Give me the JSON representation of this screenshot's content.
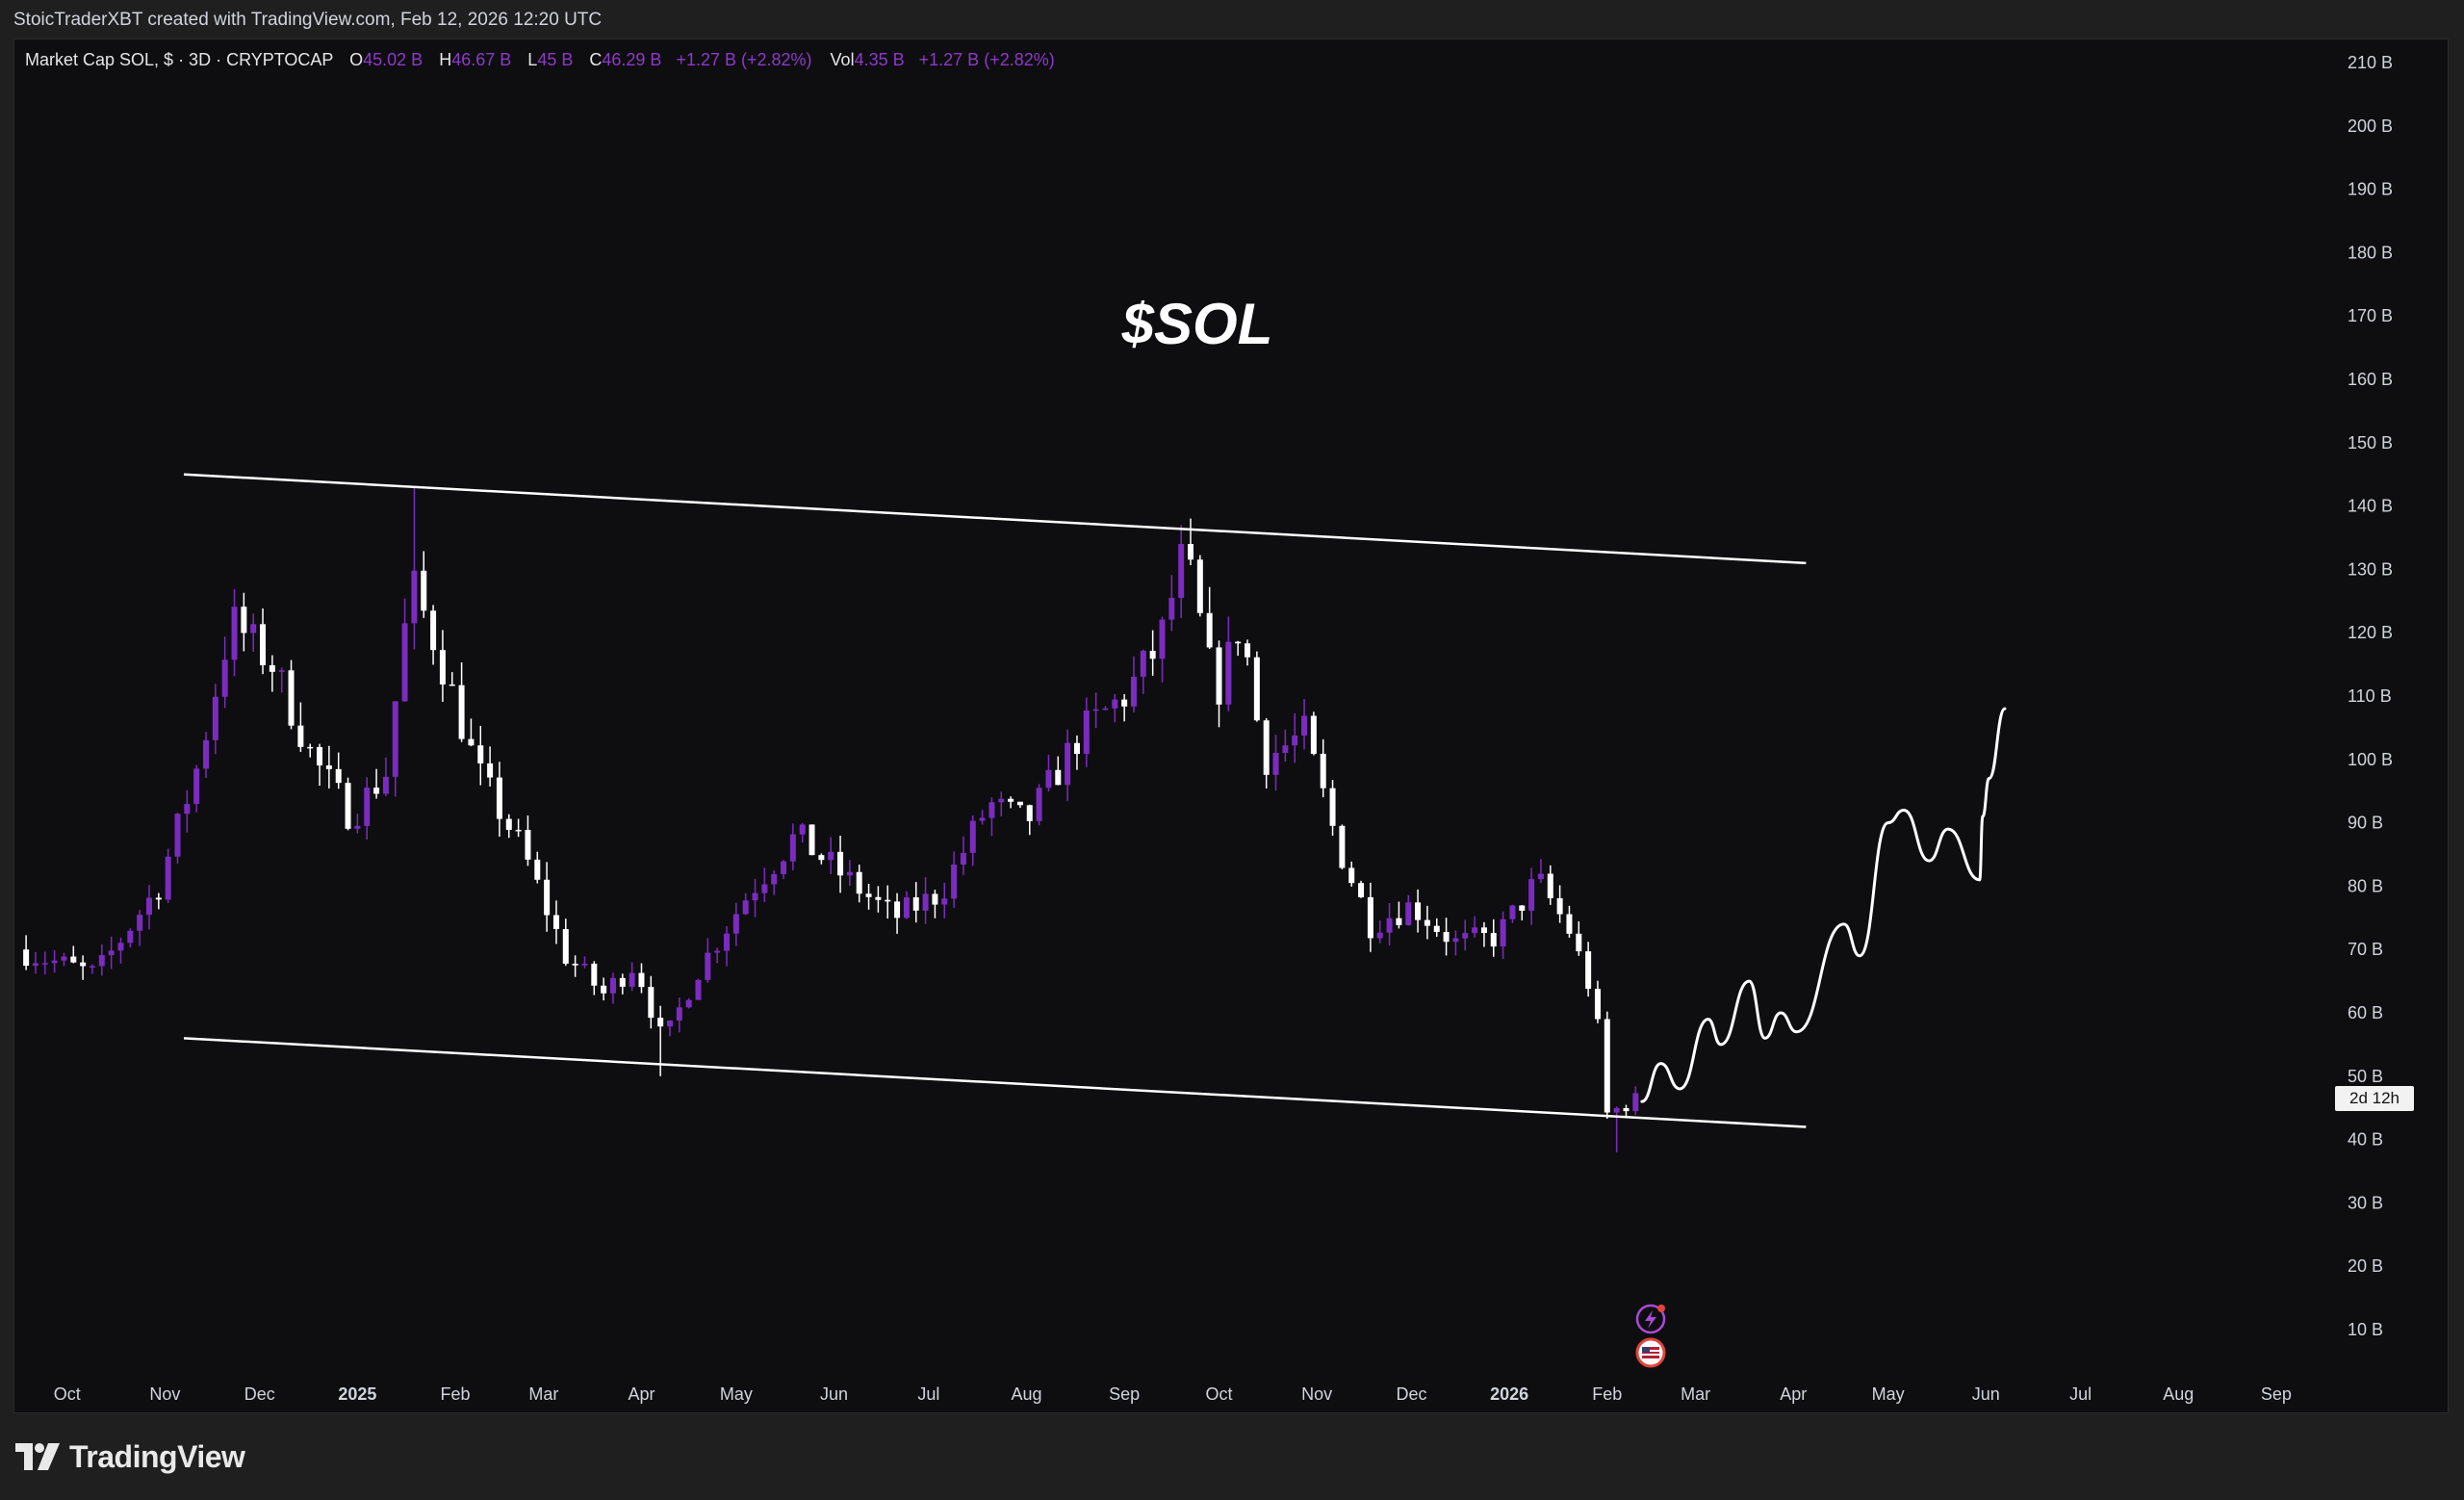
{
  "credit": "StoicTraderXBT created with TradingView.com, Feb 12, 2026 12:20 UTC",
  "legend": {
    "symbol": "Market Cap SOL, $ · 3D · CRYPTOCAP",
    "open_label": "O",
    "open": "45.02 B",
    "high_label": "H",
    "high": "46.67 B",
    "low_label": "L",
    "low": "45 B",
    "close_label": "C",
    "close": "46.29 B",
    "change": "+1.27 B (+2.82%)",
    "vol_label": "Vol",
    "vol": "4.35 B",
    "vol_change": "+1.27 B (+2.82%)"
  },
  "countdown": "2d 12h",
  "brand": "TradingView",
  "colors": {
    "background": "#0e0e10",
    "bull_candle": "#7b2cbf",
    "bear_candle": "#ffffff",
    "legend_value": "#8e39c9",
    "axis_text": "#d1d4dc"
  },
  "icons": [
    "tradingview-logo-icon",
    "lightning-event-icon",
    "us-flag-event-icon"
  ],
  "chart_data": {
    "type": "candlestick",
    "title": "$SOL",
    "ylabel": "",
    "xlabel": "",
    "ylim": [
      0,
      215
    ],
    "y_ticks": [
      "210 B",
      "200 B",
      "190 B",
      "180 B",
      "170 B",
      "160 B",
      "150 B",
      "140 B",
      "130 B",
      "120 B",
      "110 B",
      "100 B",
      "90 B",
      "80 B",
      "70 B",
      "60 B",
      "50 B",
      "40 B",
      "30 B",
      "20 B",
      "10 B"
    ],
    "y_tick_values": [
      210,
      200,
      190,
      180,
      170,
      160,
      150,
      140,
      130,
      120,
      110,
      100,
      90,
      80,
      70,
      60,
      50,
      40,
      30,
      20,
      10
    ],
    "x_ticks": [
      {
        "label": "Oct",
        "date": "2024-10-01",
        "bold": false
      },
      {
        "label": "Nov",
        "date": "2024-11-01",
        "bold": false
      },
      {
        "label": "Dec",
        "date": "2024-12-01",
        "bold": false
      },
      {
        "label": "2025",
        "date": "2025-01-01",
        "bold": true
      },
      {
        "label": "Feb",
        "date": "2025-02-01",
        "bold": false
      },
      {
        "label": "Mar",
        "date": "2025-03-01",
        "bold": false
      },
      {
        "label": "Apr",
        "date": "2025-04-01",
        "bold": false
      },
      {
        "label": "May",
        "date": "2025-05-01",
        "bold": false
      },
      {
        "label": "Jun",
        "date": "2025-06-01",
        "bold": false
      },
      {
        "label": "Jul",
        "date": "2025-07-01",
        "bold": false
      },
      {
        "label": "Aug",
        "date": "2025-08-01",
        "bold": false
      },
      {
        "label": "Sep",
        "date": "2025-09-01",
        "bold": false
      },
      {
        "label": "Oct",
        "date": "2025-10-01",
        "bold": false
      },
      {
        "label": "Nov",
        "date": "2025-11-01",
        "bold": false
      },
      {
        "label": "Dec",
        "date": "2025-12-01",
        "bold": false
      },
      {
        "label": "2026",
        "date": "2026-01-01",
        "bold": true
      },
      {
        "label": "Feb",
        "date": "2026-02-01",
        "bold": false
      },
      {
        "label": "Mar",
        "date": "2026-03-01",
        "bold": false
      },
      {
        "label": "Apr",
        "date": "2026-04-01",
        "bold": false
      },
      {
        "label": "May",
        "date": "2026-05-01",
        "bold": false
      },
      {
        "label": "Jun",
        "date": "2026-06-01",
        "bold": false
      },
      {
        "label": "Jul",
        "date": "2026-07-01",
        "bold": false
      },
      {
        "label": "Aug",
        "date": "2026-08-01",
        "bold": false
      },
      {
        "label": "Sep",
        "date": "2026-09-01",
        "bold": false
      }
    ],
    "grid": false,
    "close_anchors": [
      {
        "date": "2024-09-15",
        "close": 70
      },
      {
        "date": "2024-10-10",
        "close": 66
      },
      {
        "date": "2024-10-30",
        "close": 80
      },
      {
        "date": "2024-11-12",
        "close": 100
      },
      {
        "date": "2024-11-22",
        "close": 122
      },
      {
        "date": "2024-12-05",
        "close": 115
      },
      {
        "date": "2024-12-18",
        "close": 100
      },
      {
        "date": "2024-12-30",
        "close": 91
      },
      {
        "date": "2025-01-10",
        "close": 98
      },
      {
        "date": "2025-01-18",
        "close": 128
      },
      {
        "date": "2025-01-26",
        "close": 118
      },
      {
        "date": "2025-02-08",
        "close": 98
      },
      {
        "date": "2025-02-22",
        "close": 86
      },
      {
        "date": "2025-03-08",
        "close": 69
      },
      {
        "date": "2025-03-20",
        "close": 63
      },
      {
        "date": "2025-03-30",
        "close": 68
      },
      {
        "date": "2025-04-08",
        "close": 55
      },
      {
        "date": "2025-04-18",
        "close": 66
      },
      {
        "date": "2025-05-05",
        "close": 79
      },
      {
        "date": "2025-05-20",
        "close": 88
      },
      {
        "date": "2025-06-03",
        "close": 82
      },
      {
        "date": "2025-06-20",
        "close": 75
      },
      {
        "date": "2025-07-05",
        "close": 79
      },
      {
        "date": "2025-07-20",
        "close": 93
      },
      {
        "date": "2025-08-01",
        "close": 90
      },
      {
        "date": "2025-08-18",
        "close": 104
      },
      {
        "date": "2025-09-01",
        "close": 110
      },
      {
        "date": "2025-09-12",
        "close": 118
      },
      {
        "date": "2025-09-20",
        "close": 133
      },
      {
        "date": "2025-09-30",
        "close": 110
      },
      {
        "date": "2025-10-08",
        "close": 122
      },
      {
        "date": "2025-10-15",
        "close": 100
      },
      {
        "date": "2025-10-28",
        "close": 104
      },
      {
        "date": "2025-11-08",
        "close": 86
      },
      {
        "date": "2025-11-18",
        "close": 74
      },
      {
        "date": "2025-12-01",
        "close": 77
      },
      {
        "date": "2025-12-15",
        "close": 71
      },
      {
        "date": "2025-12-28",
        "close": 72
      },
      {
        "date": "2026-01-10",
        "close": 81
      },
      {
        "date": "2026-01-20",
        "close": 73
      },
      {
        "date": "2026-01-28",
        "close": 62
      },
      {
        "date": "2026-02-01",
        "close": 44
      },
      {
        "date": "2026-02-10",
        "close": 46.29
      }
    ],
    "swing_highs": [
      {
        "date": "2025-01-19",
        "high": 143
      },
      {
        "date": "2025-09-18",
        "high": 137
      }
    ],
    "swing_lows": [
      {
        "date": "2025-04-08",
        "high": 50
      },
      {
        "date": "2026-02-04",
        "high": 38
      }
    ],
    "channel": {
      "upper": [
        {
          "date": "2024-11-07",
          "value": 145
        },
        {
          "date": "2026-04-05",
          "value": 131
        }
      ],
      "lower": [
        {
          "date": "2024-11-07",
          "value": 56
        },
        {
          "date": "2026-04-05",
          "value": 42
        }
      ]
    },
    "projection_path": [
      {
        "date": "2026-02-12",
        "value": 46
      },
      {
        "date": "2026-02-18",
        "value": 52
      },
      {
        "date": "2026-02-24",
        "value": 48
      },
      {
        "date": "2026-03-05",
        "value": 59
      },
      {
        "date": "2026-03-09",
        "value": 55
      },
      {
        "date": "2026-03-18",
        "value": 65
      },
      {
        "date": "2026-03-23",
        "value": 56
      },
      {
        "date": "2026-03-28",
        "value": 60
      },
      {
        "date": "2026-04-02",
        "value": 57
      },
      {
        "date": "2026-04-17",
        "value": 74
      },
      {
        "date": "2026-04-22",
        "value": 69
      },
      {
        "date": "2026-05-01",
        "value": 90
      },
      {
        "date": "2026-05-06",
        "value": 92
      },
      {
        "date": "2026-05-14",
        "value": 84
      },
      {
        "date": "2026-05-20",
        "value": 89
      },
      {
        "date": "2026-05-30",
        "value": 81
      },
      {
        "date": "2026-05-31",
        "value": 91
      },
      {
        "date": "2026-06-02",
        "value": 97
      },
      {
        "date": "2026-06-07",
        "value": 108
      }
    ],
    "date_range": [
      "2024-09-14",
      "2026-09-30"
    ]
  }
}
